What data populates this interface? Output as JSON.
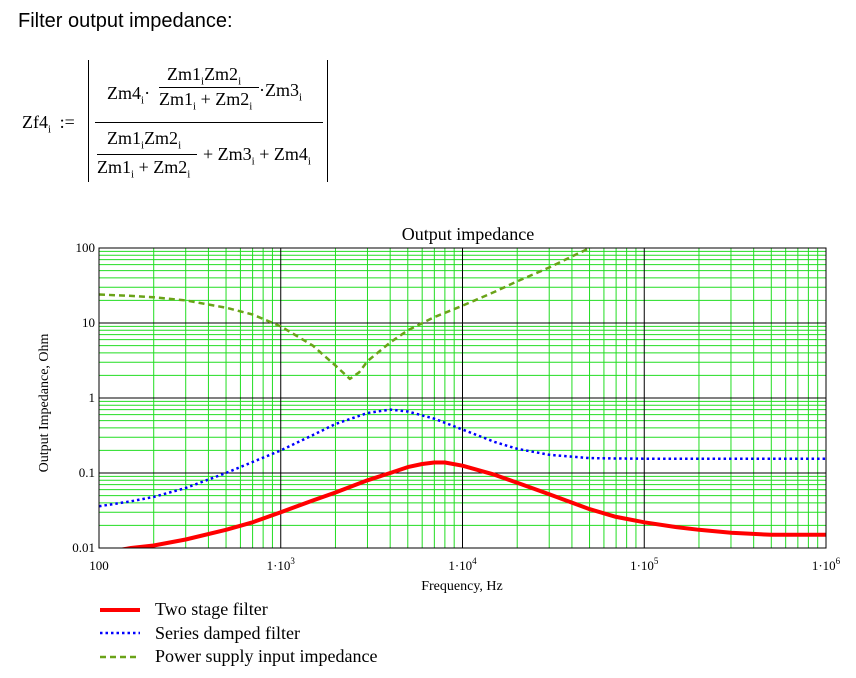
{
  "heading": "Filter output impedance:",
  "equation": {
    "lhs": "Zf4",
    "lhs_sub": "i",
    "assign": ":=",
    "num_prefix": "Zm4",
    "num_inner_top": "Zm1",
    "num_inner_top2": "Zm2",
    "num_inner_bot": "Zm1",
    "num_inner_bot_op": "+ Zm2",
    "num_suffix": "Zm3",
    "den_top": "Zm1",
    "den_top2": "Zm2",
    "den_bot": "Zm1",
    "den_bot_op": "+ Zm2",
    "den_suffix": "+ Zm3",
    "den_suffix2": "+ Zm4",
    "sub": "i",
    "dot": "·"
  },
  "chart_data": {
    "type": "line",
    "title": "Output impedance",
    "xlabel": "Frequency, Hz",
    "ylabel": "Output Impedance, Ohm",
    "xscale": "log",
    "yscale": "log",
    "xlim": [
      100,
      1000000
    ],
    "ylim": [
      0.01,
      100
    ],
    "grid": true,
    "legend_position": "bottom-left",
    "x_ticks": [
      {
        "base": "100",
        "exp": ""
      },
      {
        "base": "1·10",
        "exp": "3"
      },
      {
        "base": "1·10",
        "exp": "4"
      },
      {
        "base": "1·10",
        "exp": "5"
      },
      {
        "base": "1·10",
        "exp": "6"
      }
    ],
    "y_ticks": [
      "100",
      "10",
      "1",
      "0.1",
      "0.01"
    ],
    "series": [
      {
        "name": "Two stage filter",
        "color": "#ff0000",
        "style": "solid",
        "x": [
          100,
          150,
          200,
          300,
          500,
          700,
          1000,
          1500,
          2000,
          3000,
          4000,
          5000,
          6000,
          7000,
          8000,
          10000,
          15000,
          20000,
          30000,
          50000,
          70000,
          100000,
          150000,
          200000,
          300000,
          500000,
          700000,
          1000000
        ],
        "y": [
          0.0085,
          0.01,
          0.0108,
          0.013,
          0.0175,
          0.022,
          0.03,
          0.043,
          0.055,
          0.08,
          0.1,
          0.12,
          0.132,
          0.138,
          0.138,
          0.125,
          0.095,
          0.074,
          0.052,
          0.033,
          0.026,
          0.022,
          0.019,
          0.0175,
          0.016,
          0.015,
          0.015,
          0.015
        ]
      },
      {
        "name": "Series damped filter",
        "color": "#0000ff",
        "style": "dotted",
        "x": [
          100,
          150,
          200,
          300,
          500,
          700,
          1000,
          1500,
          2000,
          3000,
          4000,
          5000,
          7000,
          10000,
          15000,
          20000,
          30000,
          50000,
          70000,
          100000,
          200000,
          500000,
          1000000
        ],
        "y": [
          0.036,
          0.042,
          0.048,
          0.063,
          0.1,
          0.14,
          0.2,
          0.32,
          0.45,
          0.63,
          0.7,
          0.66,
          0.53,
          0.38,
          0.26,
          0.21,
          0.175,
          0.158,
          0.156,
          0.155,
          0.155,
          0.155,
          0.155
        ]
      },
      {
        "name": "Power supply input impedance",
        "color": "#6aa318",
        "style": "dashed",
        "x": [
          100,
          150,
          200,
          300,
          500,
          700,
          1000,
          1500,
          2000,
          2400,
          2700,
          3000,
          4000,
          5000,
          7000,
          10000,
          15000,
          20000,
          30000,
          50000,
          70000
        ],
        "y": [
          24,
          23,
          22,
          20,
          16,
          13,
          9,
          5,
          2.7,
          1.8,
          2.2,
          3.1,
          5.5,
          8,
          12,
          17,
          26,
          36,
          55,
          100,
          140
        ]
      }
    ]
  }
}
